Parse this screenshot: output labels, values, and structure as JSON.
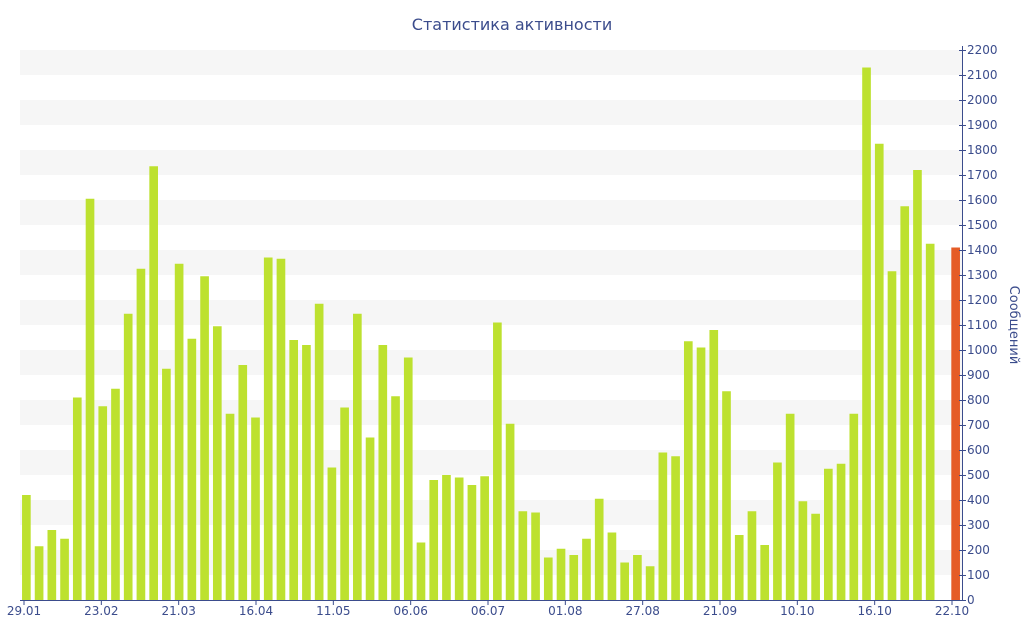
{
  "chart_data": {
    "type": "bar",
    "title": "Статистика активности",
    "ylabel": "Сообщений",
    "xlabel": "",
    "ylim": [
      0,
      2200
    ],
    "y_ticks": [
      0,
      100,
      200,
      300,
      400,
      500,
      600,
      700,
      800,
      900,
      1000,
      1100,
      1200,
      1300,
      1400,
      1500,
      1600,
      1700,
      1800,
      1900,
      2000,
      2100,
      2200
    ],
    "x_tick_labels": [
      "29.01",
      "23.02",
      "21.03",
      "16.04",
      "11.05",
      "06.06",
      "06.07",
      "01.08",
      "27.08",
      "21.09",
      "10.10",
      "16.10",
      "22.10"
    ],
    "grid": "horizontal bands",
    "bar_color": "#bde12f",
    "highlight_color": "#e55c27",
    "highlight_index": 73,
    "values": [
      420,
      215,
      280,
      245,
      810,
      1605,
      775,
      845,
      1145,
      1325,
      1735,
      925,
      1345,
      1045,
      1295,
      1095,
      745,
      940,
      730,
      1370,
      1365,
      1040,
      1020,
      1185,
      530,
      770,
      1145,
      650,
      1020,
      815,
      970,
      230,
      480,
      500,
      490,
      460,
      495,
      1110,
      705,
      355,
      350,
      170,
      205,
      180,
      245,
      405,
      270,
      150,
      180,
      135,
      590,
      575,
      1035,
      1010,
      1080,
      835,
      260,
      355,
      220,
      550,
      745,
      395,
      345,
      525,
      545,
      745,
      2130,
      1825,
      1315,
      1575,
      1720,
      1425,
      0,
      1410
    ]
  }
}
